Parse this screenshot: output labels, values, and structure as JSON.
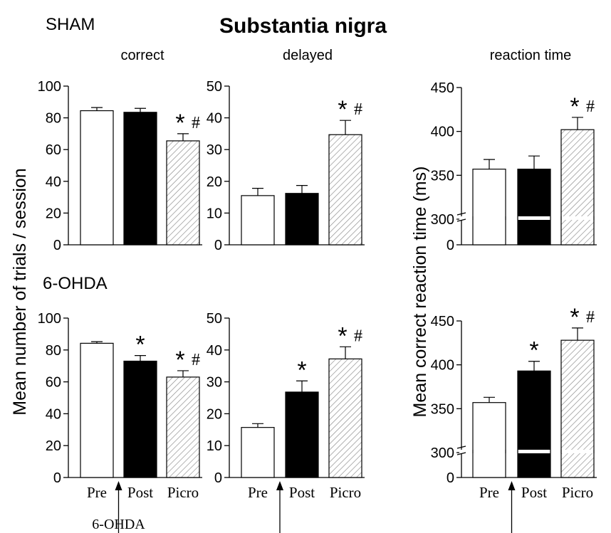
{
  "title": "Substantia nigra",
  "row_labels": {
    "top": "SHAM",
    "bottom": "6-OHDA"
  },
  "col_titles": [
    "correct",
    "delayed",
    "reaction time"
  ],
  "ylabel_left": "Mean number of trials / session",
  "ylabel_right": "Mean correct reaction time (ms)",
  "categories": [
    "Pre",
    "Post",
    "Picro"
  ],
  "lesion_label": "6-OHDA",
  "sig_star": "*",
  "sig_hash": "#",
  "colors": {
    "pre": "#ffffff",
    "post": "#000000",
    "picro": "hatch",
    "stroke": "#000000"
  },
  "chart_data": [
    {
      "type": "bar",
      "group": "SHAM",
      "title": "correct",
      "categories": [
        "Pre",
        "Post",
        "Picro"
      ],
      "values": [
        84.5,
        83.5,
        65.5
      ],
      "errors": [
        2,
        2.5,
        4.5
      ],
      "ylim": [
        0,
        100
      ],
      "yticks": [
        0,
        20,
        40,
        60,
        80,
        100
      ],
      "annotations": [
        "",
        "",
        "* #"
      ]
    },
    {
      "type": "bar",
      "group": "SHAM",
      "title": "delayed",
      "categories": [
        "Pre",
        "Post",
        "Picro"
      ],
      "values": [
        15.5,
        16.2,
        34.7
      ],
      "errors": [
        2.3,
        2.5,
        4.5
      ],
      "ylim": [
        0,
        50
      ],
      "yticks": [
        0,
        10,
        20,
        30,
        40,
        50
      ],
      "annotations": [
        "",
        "",
        "* #"
      ]
    },
    {
      "type": "bar",
      "group": "SHAM",
      "title": "reaction time",
      "categories": [
        "Pre",
        "Post",
        "Picro"
      ],
      "values": [
        357,
        357,
        402
      ],
      "errors": [
        11,
        15,
        14
      ],
      "ylim": [
        300,
        450
      ],
      "yticks": [
        300,
        350,
        400,
        450
      ],
      "axis_break": true,
      "baseline_label": "0",
      "annotations": [
        "",
        "",
        "* #"
      ]
    },
    {
      "type": "bar",
      "group": "6-OHDA",
      "title": "correct",
      "categories": [
        "Pre",
        "Post",
        "Picro"
      ],
      "values": [
        84.2,
        73,
        63
      ],
      "errors": [
        1,
        3.5,
        4
      ],
      "ylim": [
        0,
        100
      ],
      "yticks": [
        0,
        20,
        40,
        60,
        80,
        100
      ],
      "annotations": [
        "",
        "*",
        "* #"
      ]
    },
    {
      "type": "bar",
      "group": "6-OHDA",
      "title": "delayed",
      "categories": [
        "Pre",
        "Post",
        "Picro"
      ],
      "values": [
        15.7,
        26.8,
        37.2
      ],
      "errors": [
        1.2,
        3.5,
        3.8
      ],
      "ylim": [
        0,
        50
      ],
      "yticks": [
        0,
        10,
        20,
        30,
        40,
        50
      ],
      "annotations": [
        "",
        "*",
        "* #"
      ]
    },
    {
      "type": "bar",
      "group": "6-OHDA",
      "title": "reaction time",
      "categories": [
        "Pre",
        "Post",
        "Picro"
      ],
      "values": [
        357,
        393,
        428
      ],
      "errors": [
        6,
        11,
        14
      ],
      "ylim": [
        300,
        450
      ],
      "yticks": [
        300,
        350,
        400,
        450
      ],
      "axis_break": true,
      "baseline_label": "0",
      "annotations": [
        "",
        "*",
        "* #"
      ]
    }
  ]
}
